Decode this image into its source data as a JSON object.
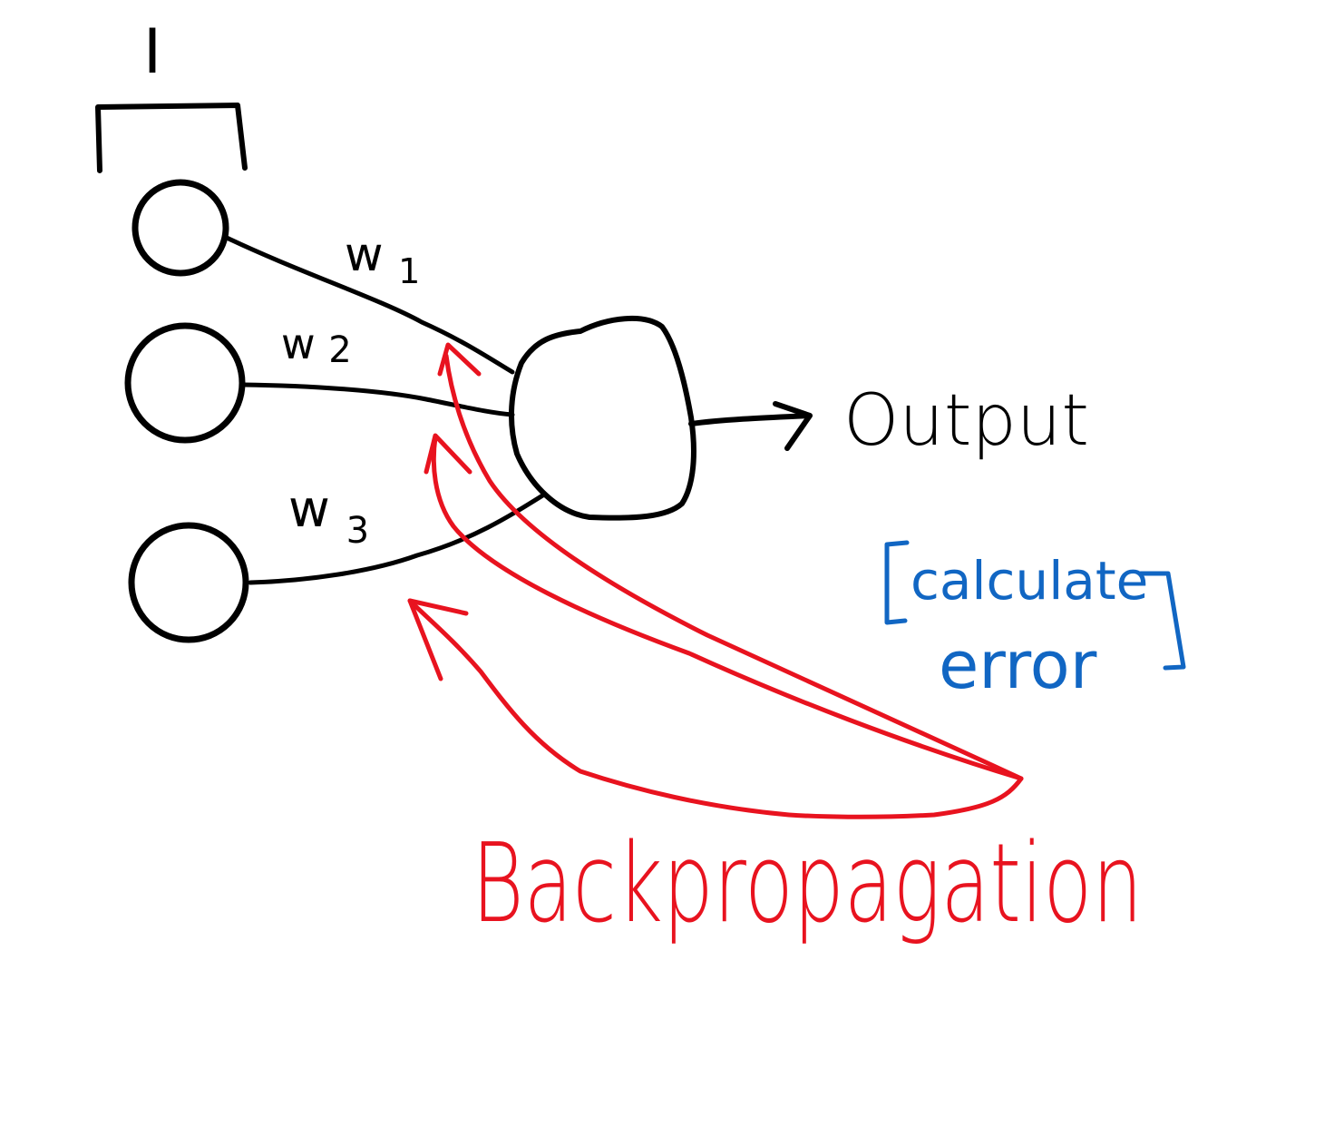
{
  "labels": {
    "input_layer": "I",
    "w1": "w",
    "w1_sub": "1",
    "w2": "w",
    "w2_sub": "2",
    "w3": "w",
    "w3_sub": "3",
    "output": "Output",
    "calculate": "calculate",
    "error": "error",
    "backprop": "Backpropagation"
  },
  "colors": {
    "ink": "#000000",
    "backprop": "#e8131f",
    "annotation": "#1166c3",
    "background": "#ffffff"
  }
}
